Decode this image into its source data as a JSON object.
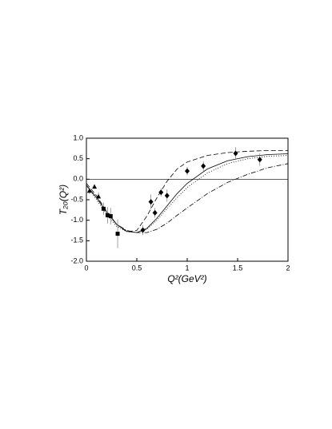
{
  "chart_data": {
    "type": "scatter",
    "xlabel": "Q²(GeV²)",
    "ylabel": "T₂₀(Q²)",
    "xlim": [
      0,
      2
    ],
    "ylim": [
      -2,
      1
    ],
    "xticks": [
      0,
      0.5,
      1,
      1.5,
      2
    ],
    "yticks": [
      {
        "value": 1,
        "label": "1.0"
      },
      0.5,
      {
        "value": 0,
        "label": "0.0"
      },
      -0.5,
      {
        "value": -1,
        "label": "-1.0"
      },
      -1.5,
      {
        "value": -2,
        "label": "-2.0"
      }
    ],
    "series": [
      {
        "marker": "triangle",
        "color": "#000000",
        "x": [
          0.03,
          0.08,
          0.12
        ],
        "values": [
          -0.28,
          -0.18,
          -0.42
        ],
        "errors": [
          0.08,
          0.06,
          0.1
        ]
      },
      {
        "marker": "square",
        "color": "#000000",
        "x": [
          0.17,
          0.21,
          0.24,
          0.31
        ],
        "values": [
          -0.72,
          -0.88,
          -0.9,
          -1.33
        ],
        "errors": [
          0.15,
          0.2,
          0.2,
          0.35
        ]
      },
      {
        "marker": "diamond",
        "color": "#000000",
        "x": [
          0.56,
          0.64,
          0.68,
          0.74,
          0.8,
          1.0,
          1.16,
          1.48,
          1.72
        ],
        "values": [
          -1.24,
          -0.55,
          -0.82,
          -0.32,
          -0.4,
          0.2,
          0.32,
          0.63,
          0.48
        ],
        "errors": [
          0.12,
          0.18,
          0.12,
          0.1,
          0.15,
          0.1,
          0.12,
          0.15,
          0.15
        ]
      }
    ],
    "lines": [
      {
        "dash": "none",
        "color": "#000000",
        "x": [
          0,
          0.1,
          0.2,
          0.3,
          0.4,
          0.5,
          0.6,
          0.7,
          0.8,
          0.9,
          1.0,
          1.2,
          1.4,
          1.6,
          1.8,
          2.0
        ],
        "values": [
          -0.15,
          -0.45,
          -0.8,
          -1.1,
          -1.27,
          -1.3,
          -1.2,
          -0.95,
          -0.65,
          -0.35,
          -0.1,
          0.25,
          0.45,
          0.55,
          0.6,
          0.62
        ]
      },
      {
        "dash": "6,3",
        "color": "#000000",
        "x": [
          0,
          0.1,
          0.2,
          0.3,
          0.4,
          0.5,
          0.6,
          0.7,
          0.8,
          0.9,
          1.0,
          1.2,
          1.4,
          1.6,
          1.8,
          2.0
        ],
        "values": [
          -0.1,
          -0.4,
          -0.78,
          -1.1,
          -1.28,
          -1.25,
          -0.9,
          -0.45,
          -0.05,
          0.25,
          0.42,
          0.58,
          0.65,
          0.68,
          0.7,
          0.7
        ]
      },
      {
        "dash": "1,2",
        "color": "#000000",
        "x": [
          0,
          0.1,
          0.2,
          0.3,
          0.4,
          0.5,
          0.6,
          0.7,
          0.8,
          0.9,
          1.0,
          1.2,
          1.4,
          1.6,
          1.8,
          2.0
        ],
        "values": [
          -0.15,
          -0.5,
          -0.85,
          -1.15,
          -1.28,
          -1.3,
          -1.22,
          -1.0,
          -0.72,
          -0.45,
          -0.2,
          0.15,
          0.38,
          0.5,
          0.56,
          0.58
        ]
      },
      {
        "dash": "6,2,1,2",
        "color": "#000000",
        "x": [
          0,
          0.1,
          0.2,
          0.3,
          0.4,
          0.5,
          0.6,
          0.7,
          0.8,
          0.9,
          1.0,
          1.2,
          1.4,
          1.6,
          1.8,
          2.0
        ],
        "values": [
          -0.15,
          -0.45,
          -0.8,
          -1.1,
          -1.25,
          -1.3,
          -1.3,
          -1.22,
          -1.07,
          -0.88,
          -0.7,
          -0.35,
          -0.08,
          0.12,
          0.28,
          0.38
        ]
      }
    ]
  }
}
